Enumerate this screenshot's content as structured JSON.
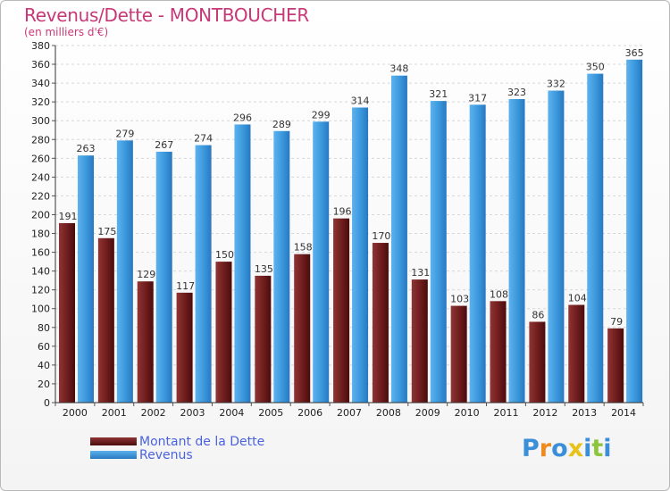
{
  "header": {
    "title": "Revenus/Dette - MONTBOUCHER",
    "subtitle": "(en milliers d'€)"
  },
  "colors": {
    "debt": "#8a2a2a",
    "revenue": "#3a97db",
    "title": "#c83878",
    "legend_text": "#4a62e0"
  },
  "logo": {
    "letters": [
      "P",
      "r",
      "o",
      "x",
      "i",
      "t",
      "i"
    ],
    "colors": [
      "#3a8fd8",
      "#f08a1c",
      "#3a8fd8",
      "#e8c21a",
      "#3a8fd8",
      "#8cc63f",
      "#3a8fd8"
    ]
  },
  "chart_data": {
    "type": "bar",
    "title": "Revenus/Dette - MONTBOUCHER",
    "subtitle": "(en milliers d'€)",
    "categories": [
      "2000",
      "2001",
      "2002",
      "2003",
      "2004",
      "2005",
      "2006",
      "2007",
      "2008",
      "2009",
      "2010",
      "2011",
      "2012",
      "2013",
      "2014"
    ],
    "series": [
      {
        "name": "Montant de la Dette",
        "values": [
          191,
          175,
          129,
          117,
          150,
          135,
          158,
          196,
          170,
          131,
          103,
          108,
          86,
          104,
          79
        ]
      },
      {
        "name": "Revenus",
        "values": [
          263,
          279,
          267,
          274,
          296,
          289,
          299,
          314,
          348,
          321,
          317,
          323,
          332,
          350,
          365
        ]
      }
    ],
    "ylim": [
      0,
      380
    ],
    "ytick_step": 20,
    "grid": true,
    "legend": "bottom-left"
  }
}
